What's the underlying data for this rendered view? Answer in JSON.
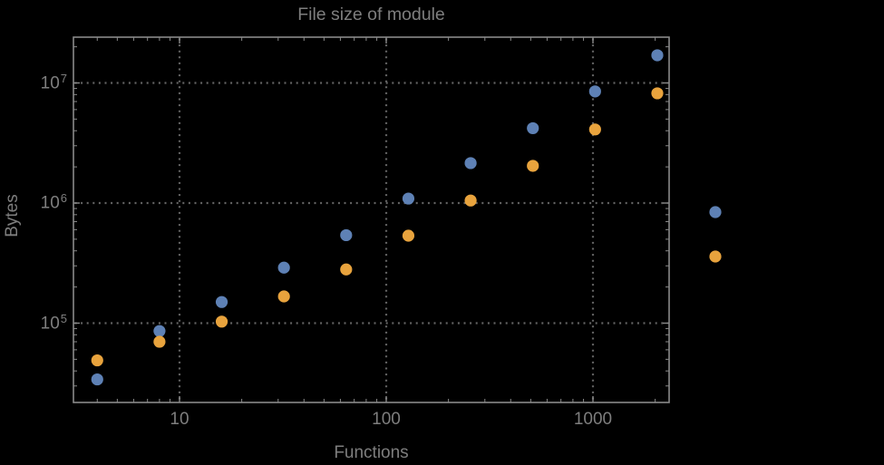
{
  "chart_data": {
    "type": "scatter",
    "title": "File size of module",
    "xlabel": "Functions",
    "ylabel": "Bytes",
    "background": "#000000",
    "frame_color": "#8a8a8a",
    "grid_color": "#636363",
    "text_color": "#7e7e7e",
    "x_axis": {
      "scale": "log",
      "tick_labels": [
        "10",
        "100",
        "1000"
      ],
      "tick_values": [
        10,
        100,
        1000
      ],
      "range_log10": [
        0.487,
        3.368
      ]
    },
    "y_axis": {
      "scale": "log",
      "tick_labels": [
        {
          "base": "10",
          "exp": "7"
        },
        {
          "base": "10",
          "exp": "6"
        },
        {
          "base": "10",
          "exp": "5"
        }
      ],
      "tick_values": [
        10000000,
        1000000,
        100000
      ],
      "range_log10": [
        4.34,
        7.38
      ]
    },
    "grid": "dotted",
    "x": [
      4,
      8,
      16,
      32,
      64,
      128,
      256,
      512,
      1024,
      2048
    ],
    "series": [
      {
        "name": "blue",
        "color": "#5E81B5",
        "values": [
          34000,
          86000,
          150000,
          290000,
          540000,
          1090000,
          2150000,
          4200000,
          8500000,
          17000000
        ]
      },
      {
        "name": "orange",
        "color": "#E8A33D",
        "values": [
          49000,
          70000,
          103000,
          167000,
          280000,
          535000,
          1050000,
          2040000,
          4100000,
          8200000
        ]
      }
    ],
    "legend_markers": [
      {
        "name": "blue",
        "color": "#5E81B5"
      },
      {
        "name": "orange",
        "color": "#E8A33D"
      }
    ]
  }
}
